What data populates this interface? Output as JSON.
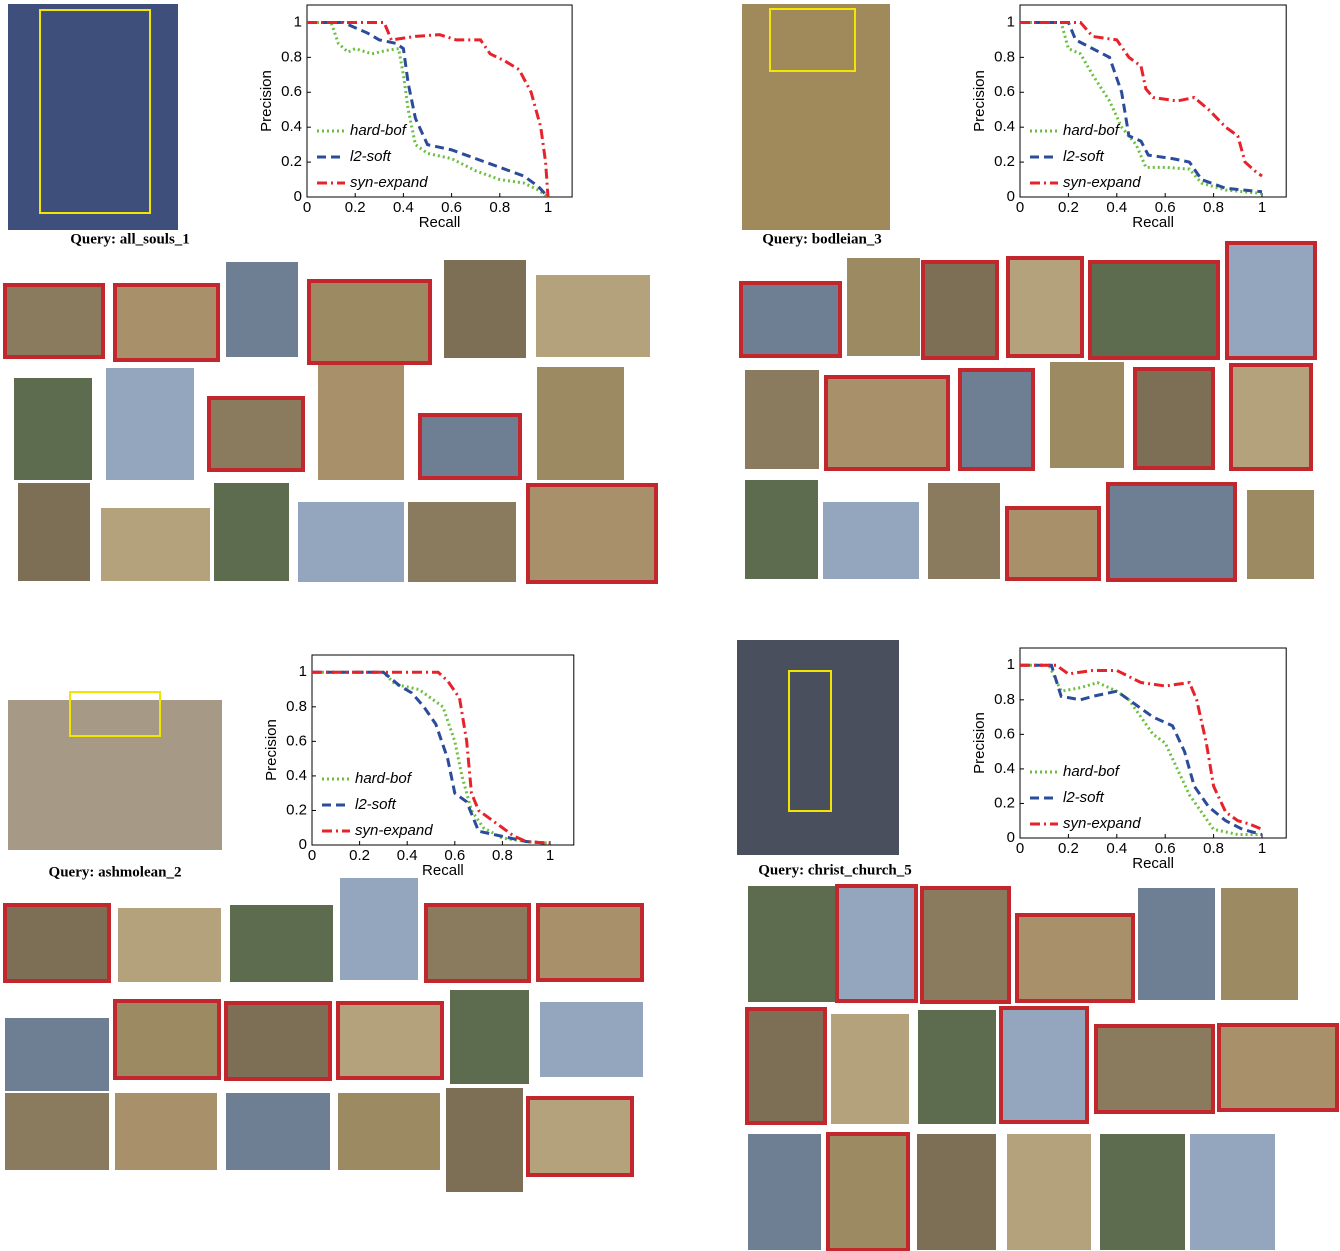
{
  "queries": [
    "Query: all_souls_1",
    "Query: bodleian_3",
    "Query: ashmolean_2",
    "Query: christ_church_5"
  ],
  "chart_data": [
    {
      "type": "line",
      "xlabel": "Recall",
      "ylabel": "Precision",
      "xlim": [
        0,
        1.1
      ],
      "ylim": [
        0,
        1.1
      ],
      "xticks": [
        0,
        0.2,
        0.4,
        0.6,
        0.8,
        1
      ],
      "yticks": [
        0,
        0.2,
        0.4,
        0.6,
        0.8,
        1
      ],
      "legend_loc": "lower left",
      "series": [
        {
          "name": "hard-bof",
          "color": "#6cbf3f",
          "dash": "dotted",
          "x": [
            0,
            0.1,
            0.13,
            0.17,
            0.2,
            0.27,
            0.33,
            0.38,
            0.4,
            0.42,
            0.45,
            0.5,
            0.6,
            0.7,
            0.8,
            0.9,
            0.96,
            1
          ],
          "values": [
            1,
            1,
            0.88,
            0.83,
            0.85,
            0.82,
            0.84,
            0.85,
            0.7,
            0.5,
            0.3,
            0.25,
            0.22,
            0.15,
            0.1,
            0.08,
            0.04,
            0
          ]
        },
        {
          "name": "l2-soft",
          "color": "#2b4b9b",
          "dash": "dashed",
          "x": [
            0,
            0.15,
            0.2,
            0.25,
            0.3,
            0.37,
            0.4,
            0.42,
            0.45,
            0.5,
            0.6,
            0.7,
            0.8,
            0.9,
            0.96,
            1
          ],
          "values": [
            1,
            1,
            0.97,
            0.94,
            0.9,
            0.88,
            0.85,
            0.65,
            0.45,
            0.3,
            0.27,
            0.22,
            0.17,
            0.12,
            0.06,
            0
          ]
        },
        {
          "name": "syn-expand",
          "color": "#e8222a",
          "dash": "dashdot",
          "x": [
            0,
            0.32,
            0.35,
            0.45,
            0.55,
            0.62,
            0.72,
            0.76,
            0.82,
            0.88,
            0.93,
            0.97,
            0.99,
            1
          ],
          "values": [
            1,
            1,
            0.9,
            0.92,
            0.93,
            0.9,
            0.9,
            0.82,
            0.78,
            0.73,
            0.6,
            0.4,
            0.2,
            0
          ]
        }
      ]
    },
    {
      "type": "line",
      "xlabel": "Recall",
      "ylabel": "Precision",
      "xlim": [
        0,
        1.1
      ],
      "ylim": [
        0,
        1.1
      ],
      "xticks": [
        0,
        0.2,
        0.4,
        0.6,
        0.8,
        1
      ],
      "yticks": [
        0,
        0.2,
        0.4,
        0.6,
        0.8,
        1
      ],
      "legend_loc": "lower left",
      "series": [
        {
          "name": "hard-bof",
          "color": "#6cbf3f",
          "dash": "dotted",
          "x": [
            0,
            0.17,
            0.2,
            0.25,
            0.3,
            0.37,
            0.42,
            0.48,
            0.52,
            0.6,
            0.7,
            0.75,
            0.85,
            1
          ],
          "values": [
            1,
            1,
            0.85,
            0.82,
            0.7,
            0.55,
            0.4,
            0.3,
            0.17,
            0.17,
            0.16,
            0.08,
            0.04,
            0.02
          ]
        },
        {
          "name": "l2-soft",
          "color": "#2b4b9b",
          "dash": "dashed",
          "x": [
            0,
            0.2,
            0.23,
            0.3,
            0.37,
            0.42,
            0.45,
            0.5,
            0.53,
            0.63,
            0.7,
            0.75,
            0.85,
            1
          ],
          "values": [
            1,
            1,
            0.9,
            0.85,
            0.8,
            0.6,
            0.35,
            0.32,
            0.24,
            0.22,
            0.2,
            0.1,
            0.05,
            0.03
          ]
        },
        {
          "name": "syn-expand",
          "color": "#e8222a",
          "dash": "dashdot",
          "x": [
            0,
            0.25,
            0.3,
            0.4,
            0.45,
            0.5,
            0.52,
            0.55,
            0.65,
            0.72,
            0.78,
            0.85,
            0.9,
            0.93,
            0.97,
            1
          ],
          "values": [
            1,
            1,
            0.92,
            0.9,
            0.8,
            0.75,
            0.62,
            0.57,
            0.55,
            0.57,
            0.5,
            0.4,
            0.35,
            0.2,
            0.15,
            0.12
          ]
        }
      ]
    },
    {
      "type": "line",
      "xlabel": "Recall",
      "ylabel": "Precision",
      "xlim": [
        0,
        1.1
      ],
      "ylim": [
        0,
        1.1
      ],
      "xticks": [
        0,
        0.2,
        0.4,
        0.6,
        0.8,
        1
      ],
      "yticks": [
        0,
        0.2,
        0.4,
        0.6,
        0.8,
        1
      ],
      "legend_loc": "lower left",
      "series": [
        {
          "name": "hard-bof",
          "color": "#6cbf3f",
          "dash": "dotted",
          "x": [
            0,
            0.3,
            0.35,
            0.45,
            0.5,
            0.55,
            0.6,
            0.63,
            0.67,
            0.72,
            0.8,
            0.9,
            1
          ],
          "values": [
            1,
            1,
            0.93,
            0.9,
            0.85,
            0.8,
            0.6,
            0.4,
            0.2,
            0.1,
            0.04,
            0.02,
            0.01
          ]
        },
        {
          "name": "l2-soft",
          "color": "#2b4b9b",
          "dash": "dashed",
          "x": [
            0,
            0.3,
            0.37,
            0.42,
            0.47,
            0.52,
            0.57,
            0.6,
            0.65,
            0.7,
            0.8,
            0.9,
            1
          ],
          "values": [
            1,
            1,
            0.92,
            0.88,
            0.8,
            0.7,
            0.5,
            0.3,
            0.25,
            0.08,
            0.05,
            0.02,
            0.01
          ]
        },
        {
          "name": "syn-expand",
          "color": "#e8222a",
          "dash": "dashdot",
          "x": [
            0,
            0.53,
            0.57,
            0.62,
            0.65,
            0.67,
            0.7,
            0.75,
            0.8,
            0.85,
            0.9,
            1
          ],
          "values": [
            1,
            1,
            0.95,
            0.85,
            0.6,
            0.3,
            0.2,
            0.15,
            0.1,
            0.05,
            0.02,
            0.01
          ]
        }
      ]
    },
    {
      "type": "line",
      "xlabel": "Recall",
      "ylabel": "Precision",
      "xlim": [
        0,
        1.1
      ],
      "ylim": [
        0,
        1.1
      ],
      "xticks": [
        0,
        0.2,
        0.4,
        0.6,
        0.8,
        1
      ],
      "yticks": [
        0,
        0.2,
        0.4,
        0.6,
        0.8,
        1
      ],
      "legend_loc": "lower left",
      "series": [
        {
          "name": "hard-bof",
          "color": "#6cbf3f",
          "dash": "dotted",
          "x": [
            0,
            0.12,
            0.17,
            0.25,
            0.32,
            0.4,
            0.45,
            0.5,
            0.55,
            0.6,
            0.65,
            0.7,
            0.75,
            0.8,
            0.9,
            1
          ],
          "values": [
            1,
            1,
            0.85,
            0.87,
            0.9,
            0.85,
            0.8,
            0.7,
            0.6,
            0.55,
            0.4,
            0.25,
            0.15,
            0.05,
            0.02,
            0.02
          ]
        },
        {
          "name": "l2-soft",
          "color": "#2b4b9b",
          "dash": "dashed",
          "x": [
            0,
            0.13,
            0.17,
            0.25,
            0.3,
            0.4,
            0.45,
            0.55,
            0.63,
            0.68,
            0.72,
            0.78,
            0.85,
            0.92,
            1
          ],
          "values": [
            1,
            1,
            0.82,
            0.8,
            0.82,
            0.85,
            0.8,
            0.7,
            0.65,
            0.5,
            0.3,
            0.18,
            0.1,
            0.05,
            0.02
          ]
        },
        {
          "name": "syn-expand",
          "color": "#e8222a",
          "dash": "dashdot",
          "x": [
            0,
            0.15,
            0.2,
            0.3,
            0.4,
            0.5,
            0.6,
            0.7,
            0.73,
            0.77,
            0.8,
            0.85,
            0.9,
            0.95,
            1
          ],
          "values": [
            1,
            1,
            0.95,
            0.97,
            0.97,
            0.9,
            0.88,
            0.9,
            0.8,
            0.55,
            0.3,
            0.15,
            0.1,
            0.08,
            0.05
          ]
        }
      ]
    }
  ]
}
